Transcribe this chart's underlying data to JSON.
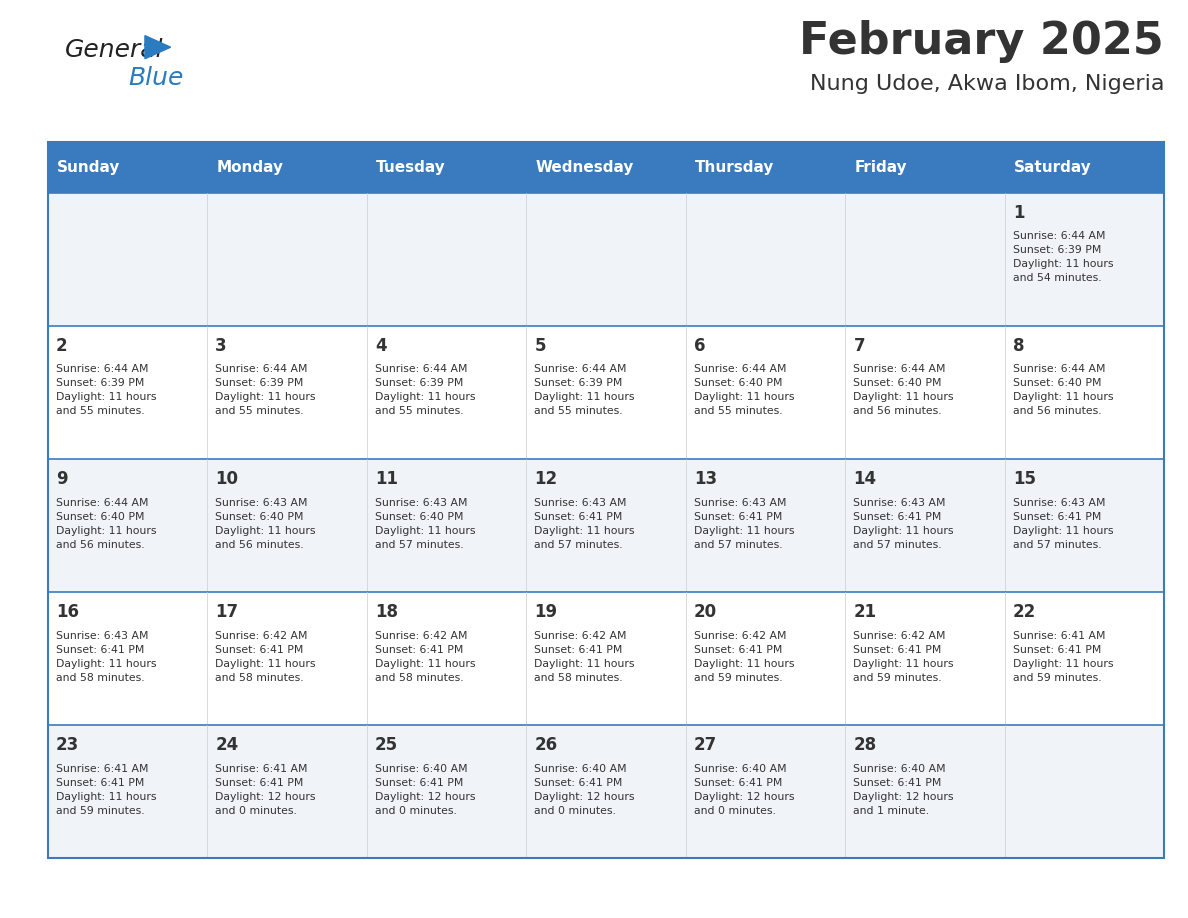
{
  "title": "February 2025",
  "subtitle": "Nung Udoe, Akwa Ibom, Nigeria",
  "header_bg": "#3a7bbf",
  "header_text": "#ffffff",
  "cell_bg_odd": "#f0f4f8",
  "cell_bg_even": "#ffffff",
  "divider_color": "#3a7bbf",
  "text_color": "#333333",
  "day_headers": [
    "Sunday",
    "Monday",
    "Tuesday",
    "Wednesday",
    "Thursday",
    "Friday",
    "Saturday"
  ],
  "weeks": [
    [
      {
        "day": "",
        "info": ""
      },
      {
        "day": "",
        "info": ""
      },
      {
        "day": "",
        "info": ""
      },
      {
        "day": "",
        "info": ""
      },
      {
        "day": "",
        "info": ""
      },
      {
        "day": "",
        "info": ""
      },
      {
        "day": "1",
        "info": "Sunrise: 6:44 AM\nSunset: 6:39 PM\nDaylight: 11 hours\nand 54 minutes."
      }
    ],
    [
      {
        "day": "2",
        "info": "Sunrise: 6:44 AM\nSunset: 6:39 PM\nDaylight: 11 hours\nand 55 minutes."
      },
      {
        "day": "3",
        "info": "Sunrise: 6:44 AM\nSunset: 6:39 PM\nDaylight: 11 hours\nand 55 minutes."
      },
      {
        "day": "4",
        "info": "Sunrise: 6:44 AM\nSunset: 6:39 PM\nDaylight: 11 hours\nand 55 minutes."
      },
      {
        "day": "5",
        "info": "Sunrise: 6:44 AM\nSunset: 6:39 PM\nDaylight: 11 hours\nand 55 minutes."
      },
      {
        "day": "6",
        "info": "Sunrise: 6:44 AM\nSunset: 6:40 PM\nDaylight: 11 hours\nand 55 minutes."
      },
      {
        "day": "7",
        "info": "Sunrise: 6:44 AM\nSunset: 6:40 PM\nDaylight: 11 hours\nand 56 minutes."
      },
      {
        "day": "8",
        "info": "Sunrise: 6:44 AM\nSunset: 6:40 PM\nDaylight: 11 hours\nand 56 minutes."
      }
    ],
    [
      {
        "day": "9",
        "info": "Sunrise: 6:44 AM\nSunset: 6:40 PM\nDaylight: 11 hours\nand 56 minutes."
      },
      {
        "day": "10",
        "info": "Sunrise: 6:43 AM\nSunset: 6:40 PM\nDaylight: 11 hours\nand 56 minutes."
      },
      {
        "day": "11",
        "info": "Sunrise: 6:43 AM\nSunset: 6:40 PM\nDaylight: 11 hours\nand 57 minutes."
      },
      {
        "day": "12",
        "info": "Sunrise: 6:43 AM\nSunset: 6:41 PM\nDaylight: 11 hours\nand 57 minutes."
      },
      {
        "day": "13",
        "info": "Sunrise: 6:43 AM\nSunset: 6:41 PM\nDaylight: 11 hours\nand 57 minutes."
      },
      {
        "day": "14",
        "info": "Sunrise: 6:43 AM\nSunset: 6:41 PM\nDaylight: 11 hours\nand 57 minutes."
      },
      {
        "day": "15",
        "info": "Sunrise: 6:43 AM\nSunset: 6:41 PM\nDaylight: 11 hours\nand 57 minutes."
      }
    ],
    [
      {
        "day": "16",
        "info": "Sunrise: 6:43 AM\nSunset: 6:41 PM\nDaylight: 11 hours\nand 58 minutes."
      },
      {
        "day": "17",
        "info": "Sunrise: 6:42 AM\nSunset: 6:41 PM\nDaylight: 11 hours\nand 58 minutes."
      },
      {
        "day": "18",
        "info": "Sunrise: 6:42 AM\nSunset: 6:41 PM\nDaylight: 11 hours\nand 58 minutes."
      },
      {
        "day": "19",
        "info": "Sunrise: 6:42 AM\nSunset: 6:41 PM\nDaylight: 11 hours\nand 58 minutes."
      },
      {
        "day": "20",
        "info": "Sunrise: 6:42 AM\nSunset: 6:41 PM\nDaylight: 11 hours\nand 59 minutes."
      },
      {
        "day": "21",
        "info": "Sunrise: 6:42 AM\nSunset: 6:41 PM\nDaylight: 11 hours\nand 59 minutes."
      },
      {
        "day": "22",
        "info": "Sunrise: 6:41 AM\nSunset: 6:41 PM\nDaylight: 11 hours\nand 59 minutes."
      }
    ],
    [
      {
        "day": "23",
        "info": "Sunrise: 6:41 AM\nSunset: 6:41 PM\nDaylight: 11 hours\nand 59 minutes."
      },
      {
        "day": "24",
        "info": "Sunrise: 6:41 AM\nSunset: 6:41 PM\nDaylight: 12 hours\nand 0 minutes."
      },
      {
        "day": "25",
        "info": "Sunrise: 6:40 AM\nSunset: 6:41 PM\nDaylight: 12 hours\nand 0 minutes."
      },
      {
        "day": "26",
        "info": "Sunrise: 6:40 AM\nSunset: 6:41 PM\nDaylight: 12 hours\nand 0 minutes."
      },
      {
        "day": "27",
        "info": "Sunrise: 6:40 AM\nSunset: 6:41 PM\nDaylight: 12 hours\nand 0 minutes."
      },
      {
        "day": "28",
        "info": "Sunrise: 6:40 AM\nSunset: 6:41 PM\nDaylight: 12 hours\nand 1 minute."
      },
      {
        "day": "",
        "info": ""
      }
    ]
  ],
  "logo_general_color": "#222222",
  "logo_blue_color": "#2a7bbf",
  "logo_triangle_color": "#2a7bbf"
}
